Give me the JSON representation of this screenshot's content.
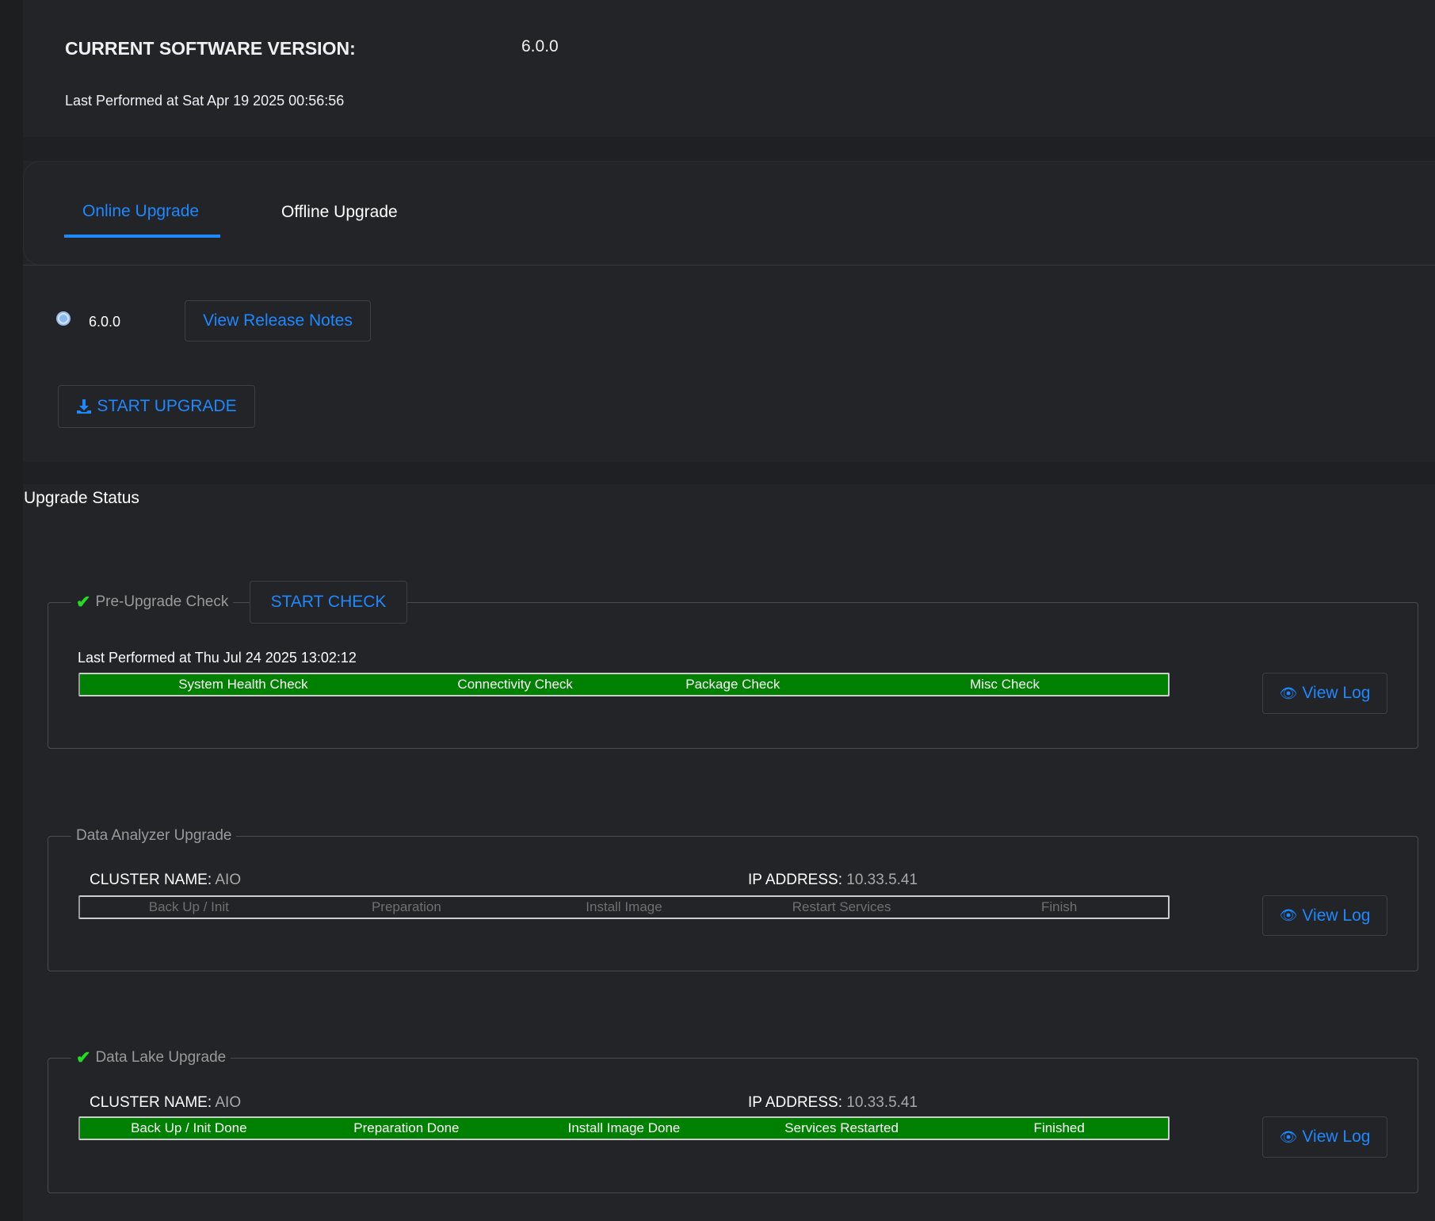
{
  "header": {
    "version_label": "CURRENT SOFTWARE VERSION:",
    "version_value": "6.0.0",
    "last_performed": "Last Performed at Sat Apr 19 2025 00:56:56"
  },
  "tabs": [
    {
      "label": "Online Upgrade",
      "active": true
    },
    {
      "label": "Offline Upgrade",
      "active": false
    }
  ],
  "online": {
    "version_option": "6.0.0",
    "release_notes_label": "View Release Notes",
    "start_upgrade_label": "START UPGRADE"
  },
  "status": {
    "title": "Upgrade Status"
  },
  "precheck": {
    "legend": "Pre-Upgrade Check",
    "start_check_label": "START CHECK",
    "last_performed": "Last Performed at Thu Jul 24 2025 13:02:12",
    "steps": [
      "System Health Check",
      "Connectivity Check",
      "Package Check",
      "Misc Check"
    ],
    "view_log": "View Log",
    "status": "complete"
  },
  "analyzer": {
    "legend": "Data Analyzer Upgrade",
    "cluster_label": "CLUSTER NAME:",
    "cluster_value": "AIO",
    "ip_label": "IP ADDRESS:",
    "ip_value": "10.33.5.41",
    "steps": [
      "Back Up / Init",
      "Preparation",
      "Install Image",
      "Restart Services",
      "Finish"
    ],
    "view_log": "View Log",
    "status": "pending"
  },
  "datalake": {
    "legend": "Data Lake Upgrade",
    "cluster_label": "CLUSTER NAME:",
    "cluster_value": "AIO",
    "ip_label": "IP ADDRESS:",
    "ip_value": "10.33.5.41",
    "steps": [
      "Back Up / Init Done",
      "Preparation Done",
      "Install Image Done",
      "Services Restarted",
      "Finished"
    ],
    "view_log": "View Log",
    "status": "complete"
  },
  "colors": {
    "accent": "#1e88ff",
    "success": "#008000",
    "check": "#22dd22"
  }
}
